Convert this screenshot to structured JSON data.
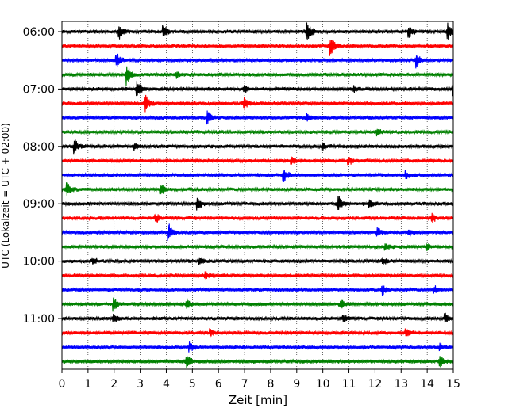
{
  "chart_data": {
    "type": "line",
    "title": "",
    "xlabel": "Zeit  [min]",
    "ylabel": "UTC (Lokalzeit = UTC + 02:00)",
    "xlim": [
      0,
      15
    ],
    "x_ticks": [
      0,
      1,
      2,
      3,
      4,
      5,
      6,
      7,
      8,
      9,
      10,
      11,
      12,
      13,
      14,
      15
    ],
    "y_tick_labels": [
      {
        "label": "06:00",
        "trace_index": 0
      },
      {
        "label": "07:00",
        "trace_index": 4
      },
      {
        "label": "08:00",
        "trace_index": 8
      },
      {
        "label": "09:00",
        "trace_index": 12
      },
      {
        "label": "10:00",
        "trace_index": 16
      },
      {
        "label": "11:00",
        "trace_index": 20
      }
    ],
    "grid": "vertical dotted at each minute",
    "trace_interval_minutes": 15,
    "color_cycle": [
      "#000000",
      "#ff0000",
      "#0000ff",
      "#008000"
    ],
    "series": [
      {
        "start": "06:00",
        "events": [
          [
            2.2,
            1.0
          ],
          [
            3.9,
            1.1
          ],
          [
            9.4,
            1.7
          ],
          [
            13.3,
            1.0
          ],
          [
            14.8,
            1.2
          ]
        ]
      },
      {
        "start": "06:15",
        "events": [
          [
            10.3,
            1.5
          ]
        ]
      },
      {
        "start": "06:30",
        "events": [
          [
            2.1,
            1.1
          ],
          [
            13.6,
            1.1
          ]
        ]
      },
      {
        "start": "06:45",
        "events": [
          [
            2.5,
            1.5
          ],
          [
            4.4,
            0.5
          ]
        ]
      },
      {
        "start": "07:00",
        "events": [
          [
            2.9,
            1.3
          ],
          [
            7.0,
            0.6
          ],
          [
            11.2,
            0.5
          ],
          [
            15.0,
            0.8
          ]
        ]
      },
      {
        "start": "07:15",
        "events": [
          [
            3.2,
            1.4
          ],
          [
            7.0,
            0.9
          ]
        ]
      },
      {
        "start": "07:30",
        "events": [
          [
            5.6,
            0.9
          ],
          [
            9.4,
            0.5
          ]
        ]
      },
      {
        "start": "07:45",
        "events": [
          [
            12.1,
            0.5
          ]
        ]
      },
      {
        "start": "08:00",
        "events": [
          [
            0.5,
            1.0
          ],
          [
            2.8,
            0.5
          ],
          [
            10.0,
            0.5
          ]
        ]
      },
      {
        "start": "08:15",
        "events": [
          [
            8.8,
            0.6
          ],
          [
            11.0,
            0.6
          ]
        ]
      },
      {
        "start": "08:30",
        "events": [
          [
            8.5,
            1.0
          ],
          [
            13.2,
            0.5
          ]
        ]
      },
      {
        "start": "08:45",
        "events": [
          [
            0.2,
            1.0
          ],
          [
            3.8,
            0.9
          ]
        ]
      },
      {
        "start": "09:00",
        "events": [
          [
            5.2,
            0.9
          ],
          [
            10.6,
            1.2
          ],
          [
            11.8,
            0.5
          ]
        ]
      },
      {
        "start": "09:15",
        "events": [
          [
            3.6,
            0.7
          ],
          [
            14.2,
            0.6
          ]
        ]
      },
      {
        "start": "09:30",
        "events": [
          [
            4.1,
            1.3
          ],
          [
            12.1,
            0.6
          ],
          [
            13.3,
            0.6
          ]
        ]
      },
      {
        "start": "09:45",
        "events": [
          [
            12.4,
            0.5
          ],
          [
            14.0,
            0.5
          ]
        ]
      },
      {
        "start": "10:00",
        "events": [
          [
            1.2,
            0.5
          ],
          [
            5.3,
            0.5
          ],
          [
            12.3,
            0.5
          ]
        ]
      },
      {
        "start": "10:15",
        "events": [
          [
            5.5,
            0.5
          ]
        ]
      },
      {
        "start": "10:30",
        "events": [
          [
            12.3,
            0.7
          ],
          [
            14.3,
            0.5
          ]
        ]
      },
      {
        "start": "10:45",
        "events": [
          [
            2.0,
            0.9
          ],
          [
            4.8,
            0.6
          ],
          [
            10.7,
            0.6
          ]
        ]
      },
      {
        "start": "11:00",
        "events": [
          [
            2.0,
            0.6
          ],
          [
            10.8,
            0.6
          ],
          [
            14.7,
            0.7
          ]
        ]
      },
      {
        "start": "11:15",
        "events": [
          [
            5.7,
            0.5
          ],
          [
            13.2,
            0.5
          ]
        ]
      },
      {
        "start": "11:30",
        "events": [
          [
            4.9,
            0.6
          ],
          [
            14.5,
            0.5
          ]
        ]
      },
      {
        "start": "11:45",
        "events": [
          [
            4.8,
            0.9
          ],
          [
            14.5,
            0.9
          ]
        ]
      }
    ]
  }
}
